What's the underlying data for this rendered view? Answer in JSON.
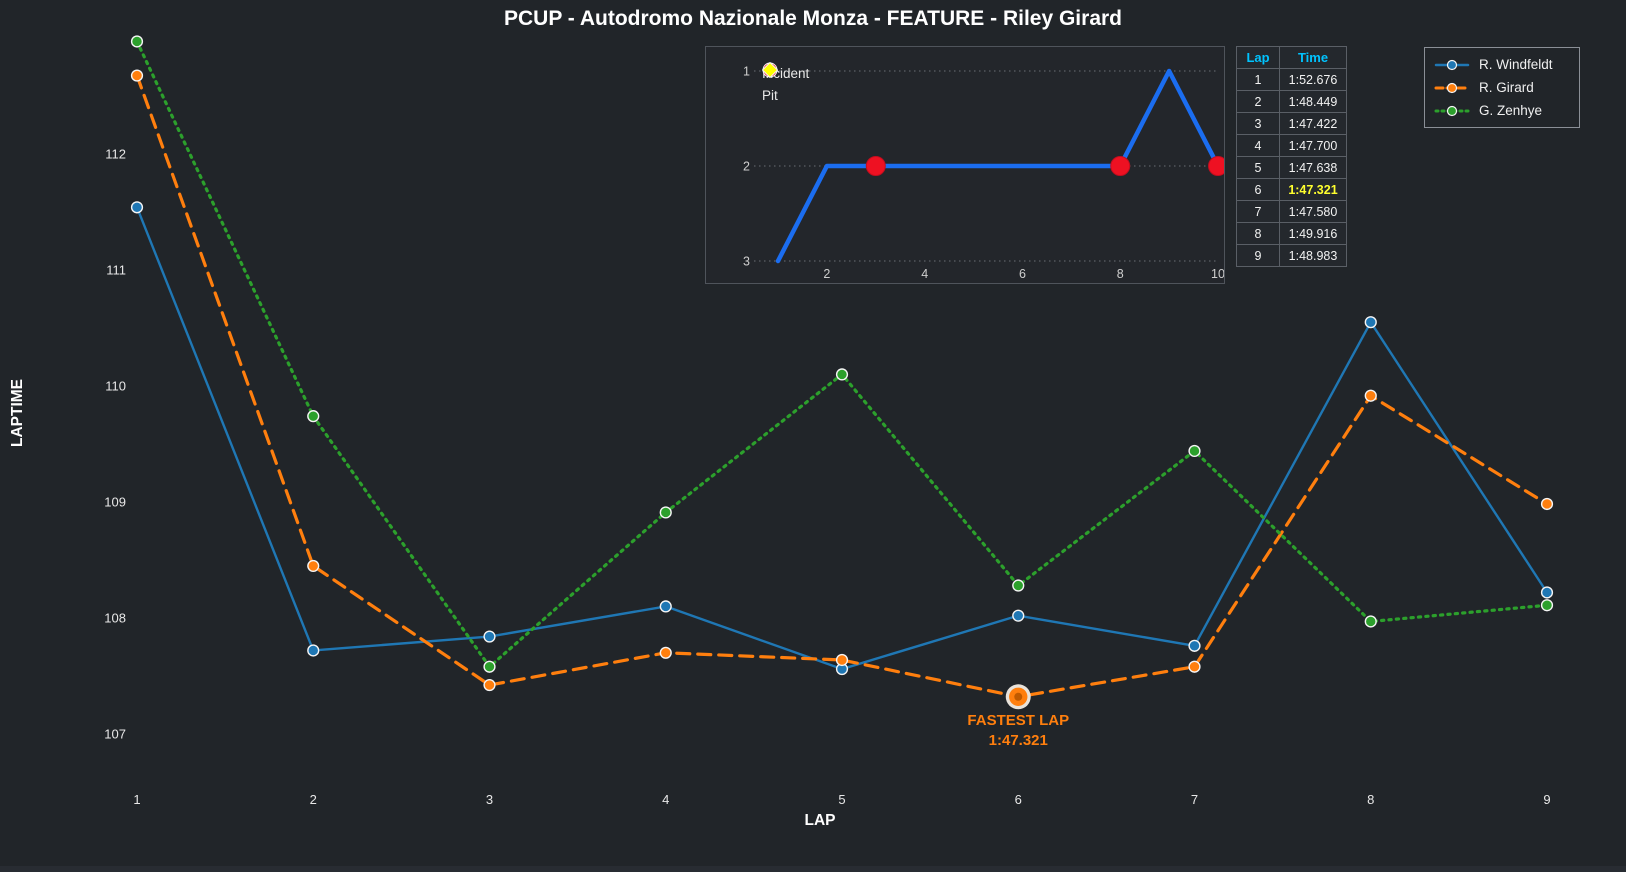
{
  "title": "PCUP - Autodromo Nazionale Monza - FEATURE - Riley Girard",
  "chart_data": [
    {
      "id": "laptimes-by-lap",
      "type": "line",
      "title": "PCUP - Autodromo Nazionale Monza - FEATURE - Riley Girard",
      "xlabel": "LAP",
      "ylabel": "LAPTIME",
      "x": [
        1,
        2,
        3,
        4,
        5,
        6,
        7,
        8,
        9
      ],
      "xticks": [
        "1",
        "2",
        "3",
        "4",
        "5",
        "6",
        "7",
        "8",
        "9"
      ],
      "yticks": [
        "107",
        "108",
        "109",
        "110",
        "111",
        "112"
      ],
      "ylim": [
        106.7,
        113.0
      ],
      "grid": false,
      "legend_position": "top-right",
      "series": [
        {
          "name": "R. Windfeldt",
          "color": "#1f77b4",
          "dash": "solid",
          "marker": "circle",
          "values": [
            111.54,
            107.72,
            107.84,
            108.1,
            107.56,
            108.02,
            107.76,
            110.55,
            108.22
          ]
        },
        {
          "name": "R. Girard",
          "color": "#ff7f0e",
          "dash": "dashed",
          "marker": "circle",
          "values": [
            112.676,
            108.449,
            107.422,
            107.7,
            107.638,
            107.321,
            107.58,
            109.916,
            108.983
          ]
        },
        {
          "name": "G. Zenhye",
          "color": "#2ca02c",
          "dash": "dotted",
          "marker": "circle",
          "values": [
            112.97,
            109.74,
            107.58,
            108.91,
            110.1,
            108.28,
            109.44,
            107.97,
            108.11
          ]
        }
      ],
      "annotation": {
        "text": "FASTEST LAP",
        "value": "1:47.321",
        "lap": 6,
        "series": "R. Girard",
        "color": "#ff7f0e"
      }
    },
    {
      "id": "position-by-lap",
      "type": "line",
      "y_inverted": true,
      "x": [
        1,
        2,
        3,
        4,
        5,
        6,
        7,
        8,
        9,
        10
      ],
      "values": [
        3,
        2,
        2,
        2,
        2,
        2,
        2,
        2,
        1,
        2
      ],
      "xticks": [
        "2",
        "4",
        "6",
        "8",
        "10"
      ],
      "yticks": [
        "1",
        "2",
        "3"
      ],
      "grid": true,
      "line_color": "#1b6df0",
      "incident_laps": [
        3,
        8,
        10
      ],
      "pit_laps": [],
      "legend": [
        {
          "label": "Incident",
          "color": "#ee1122",
          "shape": "circle"
        },
        {
          "label": "Pit",
          "color": "#ffff00",
          "shape": "diamond"
        }
      ]
    }
  ],
  "lap_table": {
    "headers": [
      "Lap",
      "Time"
    ],
    "rows": [
      [
        "1",
        "1:52.676"
      ],
      [
        "2",
        "1:48.449"
      ],
      [
        "3",
        "1:47.422"
      ],
      [
        "4",
        "1:47.700"
      ],
      [
        "5",
        "1:47.638"
      ],
      [
        "6",
        "1:47.321"
      ],
      [
        "7",
        "1:47.580"
      ],
      [
        "8",
        "1:49.916"
      ],
      [
        "9",
        "1:48.983"
      ]
    ],
    "fastest_lap_row": 6,
    "highlight_color": "#ffff2e",
    "header_color": "#00c3ff"
  },
  "legend": {
    "items": [
      {
        "label": "R. Windfeldt",
        "color": "#1f77b4",
        "dash": "solid"
      },
      {
        "label": "R. Girard",
        "color": "#ff7f0e",
        "dash": "dashed"
      },
      {
        "label": "G. Zenhye",
        "color": "#2ca02c",
        "dash": "dotted"
      }
    ]
  }
}
